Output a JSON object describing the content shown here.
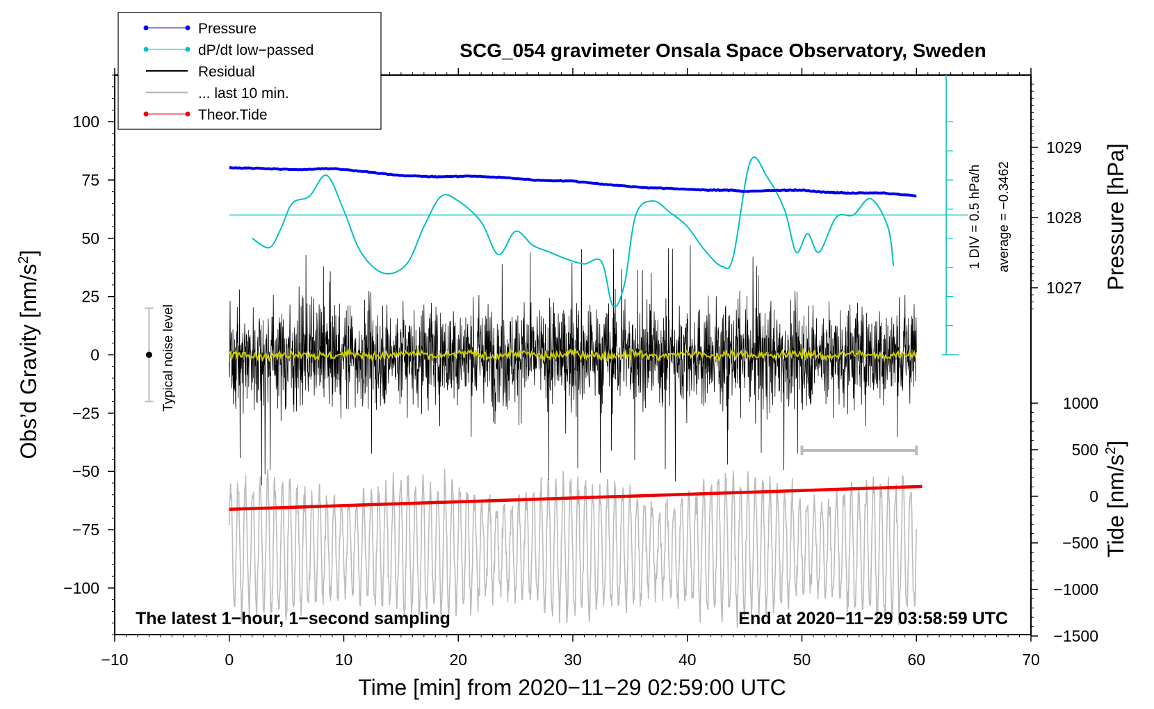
{
  "chart_data": {
    "type": "line",
    "title": "SCG_054 gravimeter Onsala Space Observatory, Sweden",
    "xlabel": "Time [min] from 2020−11−29 02:59:00 UTC",
    "ylabel_main": "Obs’d Gravity [nm/s",
    "ylabel_sup": "2",
    "ylabel_close": "]",
    "ylabel_pressure": "Pressure [hPa]",
    "ylabel_tide": "Tide [nm/s",
    "ylabel_tide_sup": "2",
    "ylabel_tide_close": "]",
    "xlim": [
      -10,
      70
    ],
    "ylim": [
      -120,
      120
    ],
    "x_ticks": [
      -10,
      0,
      10,
      20,
      30,
      40,
      50,
      60,
      70
    ],
    "x_tick_labels": [
      "−10",
      "0",
      "10",
      "20",
      "30",
      "40",
      "50",
      "60",
      "70"
    ],
    "y_ticks": [
      100,
      75,
      50,
      25,
      0,
      -25,
      -50,
      -75,
      -100
    ],
    "y_tick_labels": [
      "100",
      "75",
      "50",
      "25",
      "0",
      "−25",
      "−50",
      "−75",
      "−100"
    ],
    "pressure_ticks": [
      1029,
      1028,
      1027
    ],
    "pressure_tick_labels": [
      "1029",
      "1028",
      "1027"
    ],
    "tide_ticks": [
      1000,
      500,
      0,
      -500,
      -1000,
      -1500
    ],
    "tide_tick_labels": [
      "1000",
      "500",
      "0",
      "−500",
      "−1000",
      "−1500"
    ],
    "legend": [
      {
        "label": "Pressure",
        "color": "#0000ee",
        "marker": true
      },
      {
        "label": "dP/dt low−passed",
        "color": "#00c0c0",
        "marker": true
      },
      {
        "label": "Residual",
        "color": "#000000",
        "marker": false
      },
      {
        "label": "... last 10 min.",
        "color": "#bbbbbb",
        "marker": false
      },
      {
        "label": "Theor.Tide",
        "color": "#ee0000",
        "marker": true
      }
    ],
    "annotations": {
      "bottom_left": "The latest 1−hour, 1−second sampling",
      "bottom_right": "End at 2020−11−29 03:58:59 UTC",
      "noise": "Typical noise level",
      "div": "1 DIV = 0.5 hPa/h",
      "average": "average = −0.3462"
    },
    "pressure_series": {
      "name": "Pressure",
      "x": [
        0,
        3,
        6,
        9,
        12,
        15,
        18,
        21,
        24,
        27,
        30,
        33,
        36,
        39,
        42,
        44,
        45,
        48,
        50,
        52,
        54,
        57,
        60
      ],
      "values": [
        1028.71,
        1028.7,
        1028.68,
        1028.7,
        1028.65,
        1028.6,
        1028.58,
        1028.59,
        1028.57,
        1028.53,
        1028.52,
        1028.47,
        1028.43,
        1028.41,
        1028.39,
        1028.39,
        1028.37,
        1028.39,
        1028.39,
        1028.36,
        1028.35,
        1028.35,
        1028.31
      ]
    },
    "dpdt_series": {
      "name": "dP/dt low-passed",
      "x": [
        2,
        3.5,
        4.5,
        5.5,
        7,
        8.5,
        10,
        11.5,
        13.5,
        15.5,
        17,
        18.5,
        20,
        22,
        23.5,
        25,
        26.5,
        28,
        29.5,
        31,
        32.5,
        33.5,
        34.5,
        35.5,
        37,
        38.5,
        40,
        41.5,
        43,
        44,
        45.5,
        47,
        48.5,
        49.5,
        50.5,
        51.5,
        53,
        54.5,
        56,
        57.5,
        58
      ],
      "values": [
        50,
        46,
        54,
        65,
        68,
        77,
        62,
        44,
        35,
        39,
        55,
        68,
        66,
        57,
        43,
        53,
        47,
        44,
        41,
        39,
        40,
        21,
        30,
        60,
        66,
        61,
        55,
        45,
        38,
        42,
        83,
        76,
        62,
        44,
        52,
        44,
        59,
        60,
        67,
        55,
        38
      ]
    },
    "dpdt_reference_level": 60,
    "residual_series": {
      "name": "Residual",
      "x_start": 0,
      "x_end": 60,
      "typical_amplitude": 15,
      "extremes": [
        -56,
        48
      ]
    },
    "residual_smoothed_series": {
      "name": "Residual smoothed",
      "x_start": 0,
      "x_end": 60,
      "values_approx": 0
    },
    "last10_series": {
      "name": "... last 10 min.",
      "x_start": 0,
      "x_end": 60,
      "range": [
        -110,
        -55
      ]
    },
    "tide_series": {
      "name": "Theor.Tide",
      "x": [
        0,
        60.5
      ],
      "values": [
        -140,
        105
      ]
    },
    "noise_bar": {
      "x": -7,
      "center": 0,
      "range": [
        -20,
        20
      ]
    },
    "last10_bracket": {
      "x_start": 50,
      "x_end": 60
    }
  }
}
